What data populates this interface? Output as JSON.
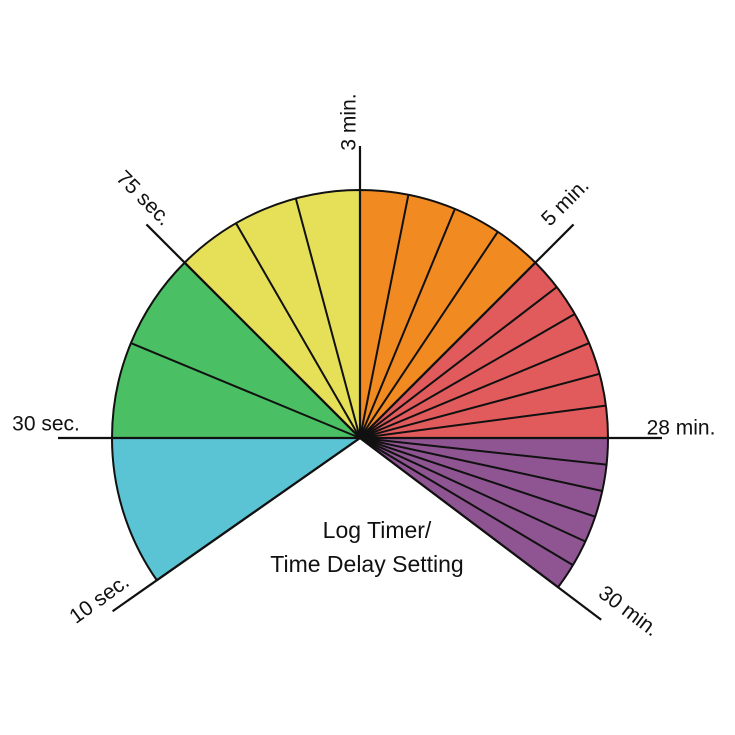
{
  "title_lines": [
    "Log Timer/",
    "Time Delay Setting"
  ],
  "markers": [
    {
      "label": "10 sec.",
      "angle": 215
    },
    {
      "label": "30 sec.",
      "angle": 180
    },
    {
      "label": "75 sec.",
      "angle": 135
    },
    {
      "label": "3 min.",
      "angle": 90
    },
    {
      "label": "5 min.",
      "angle": 45
    },
    {
      "label": "28 min.",
      "angle": 0
    },
    {
      "label": "30 min.",
      "angle": -37
    }
  ],
  "bands": [
    {
      "name": "10-30 sec",
      "color": "#5bc4d4",
      "divisions": 1
    },
    {
      "name": "30-75 sec",
      "color": "#4bbf63",
      "divisions": 2
    },
    {
      "name": "75 sec-3 min",
      "color": "#e6df58",
      "divisions": 3
    },
    {
      "name": "3-5 min",
      "color": "#f28a22",
      "divisions": 4
    },
    {
      "name": "5-28 min",
      "color": "#e15b5c",
      "divisions": 6
    },
    {
      "name": "28-30 min",
      "color": "#8f5592",
      "divisions": 6
    }
  ]
}
